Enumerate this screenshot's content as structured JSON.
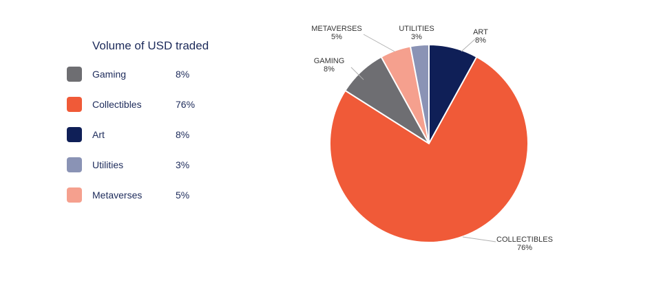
{
  "chart_data": {
    "type": "pie",
    "title": "Volume of USD traded",
    "slices": [
      {
        "category": "Art",
        "chart_label": "ART",
        "value": 8,
        "percent_label": "8%",
        "color": "#0f1f57"
      },
      {
        "category": "Collectibles",
        "chart_label": "COLLECTIBLES",
        "value": 76,
        "percent_label": "76%",
        "color": "#f05a38"
      },
      {
        "category": "Gaming",
        "chart_label": "GAMING",
        "value": 8,
        "percent_label": "8%",
        "color": "#6e6e72"
      },
      {
        "category": "Metaverses",
        "chart_label": "METAVERSES",
        "value": 5,
        "percent_label": "5%",
        "color": "#f5a08e"
      },
      {
        "category": "Utilities",
        "chart_label": "UTILITIES",
        "value": 3,
        "percent_label": "3%",
        "color": "#8a93b5"
      }
    ],
    "legend": {
      "placement": "left",
      "items": [
        {
          "label": "Gaming",
          "percent": "8%",
          "color": "#6e6e72"
        },
        {
          "label": "Collectibles",
          "percent": "76%",
          "color": "#f05a38"
        },
        {
          "label": "Art",
          "percent": "8%",
          "color": "#0f1f57"
        },
        {
          "label": "Utilities",
          "percent": "3%",
          "color": "#8a93b5"
        },
        {
          "label": "Metaverses",
          "percent": "5%",
          "color": "#f5a08e"
        }
      ]
    }
  }
}
